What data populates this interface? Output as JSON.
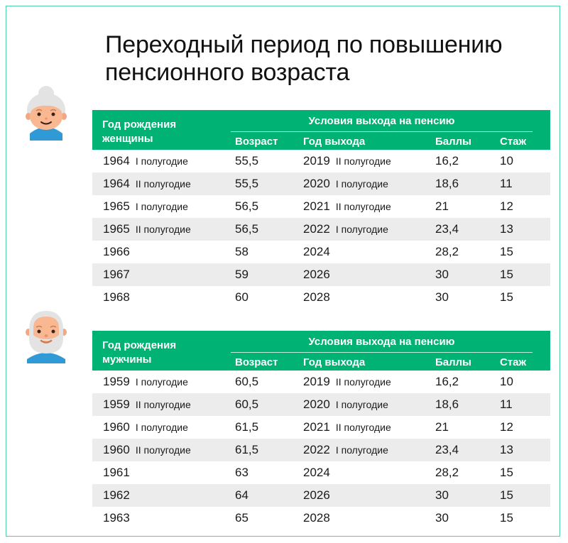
{
  "title": {
    "line1": "Переходный период по повышению",
    "line2": "пенсионного возраста"
  },
  "colors": {
    "accent": "#00b274",
    "frame": "#4fd1a0",
    "row_alt": "#ececec"
  },
  "tables": [
    {
      "avatar": "elderly-woman-icon",
      "header": {
        "birth_line1": "Год рождения",
        "birth_line2": "женщины",
        "conditions": "Условия выхода на пенсию",
        "age": "Возраст",
        "year": "Год выхода",
        "points": "Баллы",
        "experience": "Стаж"
      },
      "rows": [
        {
          "birth": "1964",
          "birth_half": "I полугодие",
          "age": "55,5",
          "year": "2019",
          "year_half": "II полугодие",
          "points": "16,2",
          "experience": "10"
        },
        {
          "birth": "1964",
          "birth_half": "II полугодие",
          "age": "55,5",
          "year": "2020",
          "year_half": "I полугодие",
          "points": "18,6",
          "experience": "11"
        },
        {
          "birth": "1965",
          "birth_half": "I полугодие",
          "age": "56,5",
          "year": "2021",
          "year_half": "II полугодие",
          "points": "21",
          "experience": "12"
        },
        {
          "birth": "1965",
          "birth_half": "II полугодие",
          "age": "56,5",
          "year": "2022",
          "year_half": "I полугодие",
          "points": "23,4",
          "experience": "13"
        },
        {
          "birth": "1966",
          "birth_half": "",
          "age": "58",
          "year": "2024",
          "year_half": "",
          "points": "28,2",
          "experience": "15"
        },
        {
          "birth": "1967",
          "birth_half": "",
          "age": "59",
          "year": "2026",
          "year_half": "",
          "points": "30",
          "experience": "15"
        },
        {
          "birth": "1968",
          "birth_half": "",
          "age": "60",
          "year": "2028",
          "year_half": "",
          "points": "30",
          "experience": "15"
        }
      ]
    },
    {
      "avatar": "elderly-man-icon",
      "header": {
        "birth_line1": "Год рождения",
        "birth_line2": "мужчины",
        "conditions": "Условия выхода на пенсию",
        "age": "Возраст",
        "year": "Год выхода",
        "points": "Баллы",
        "experience": "Стаж"
      },
      "rows": [
        {
          "birth": "1959",
          "birth_half": "I полугодие",
          "age": "60,5",
          "year": "2019",
          "year_half": "II полугодие",
          "points": "16,2",
          "experience": "10"
        },
        {
          "birth": "1959",
          "birth_half": "II полугодие",
          "age": "60,5",
          "year": "2020",
          "year_half": "I полугодие",
          "points": "18,6",
          "experience": "11"
        },
        {
          "birth": "1960",
          "birth_half": "I полугодие",
          "age": "61,5",
          "year": "2021",
          "year_half": "II полугодие",
          "points": "21",
          "experience": "12"
        },
        {
          "birth": "1960",
          "birth_half": "II полугодие",
          "age": "61,5",
          "year": "2022",
          "year_half": "I полугодие",
          "points": "23,4",
          "experience": "13"
        },
        {
          "birth": "1961",
          "birth_half": "",
          "age": "63",
          "year": "2024",
          "year_half": "",
          "points": "28,2",
          "experience": "15"
        },
        {
          "birth": "1962",
          "birth_half": "",
          "age": "64",
          "year": "2026",
          "year_half": "",
          "points": "30",
          "experience": "15"
        },
        {
          "birth": "1963",
          "birth_half": "",
          "age": "65",
          "year": "2028",
          "year_half": "",
          "points": "30",
          "experience": "15"
        }
      ]
    }
  ]
}
